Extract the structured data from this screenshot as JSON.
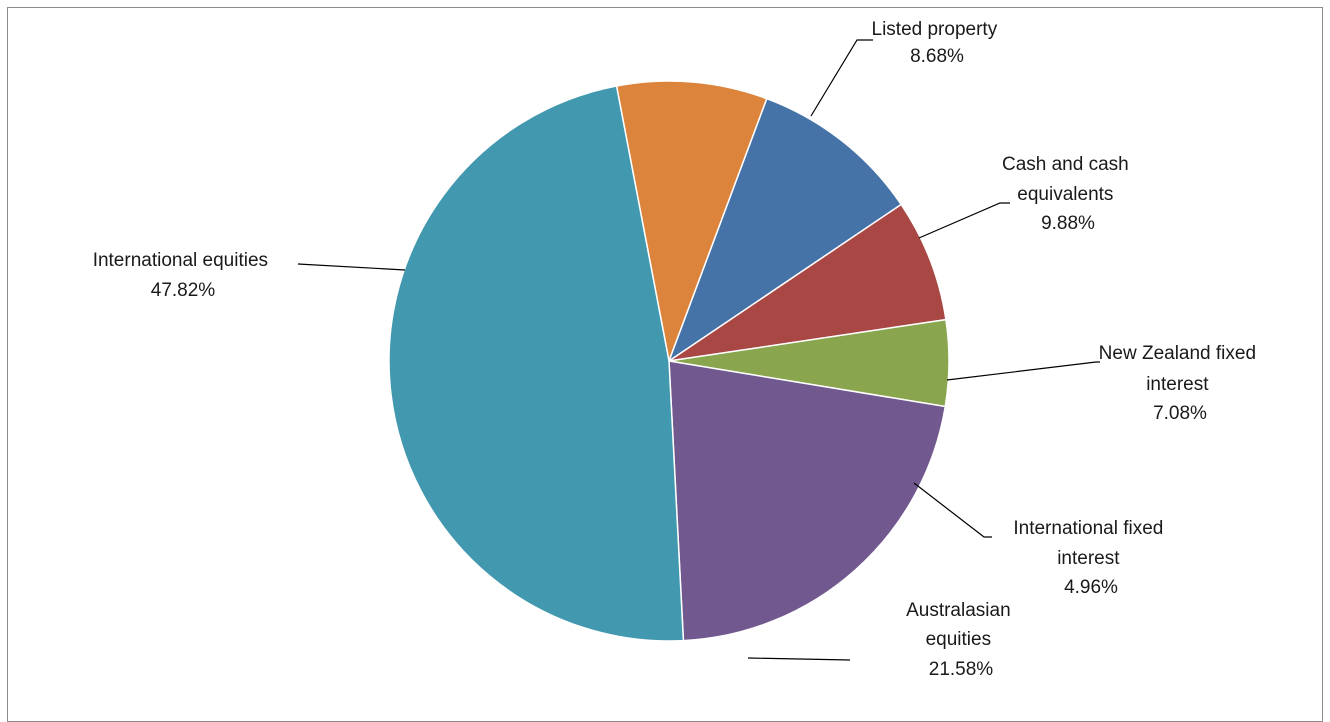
{
  "chart_data": {
    "type": "pie",
    "slices": [
      {
        "lines": [
          "Listed property"
        ],
        "value_label": "8.68%",
        "value": 8.68,
        "color": "#DD843C"
      },
      {
        "lines": [
          "Cash and cash",
          "equivalents"
        ],
        "value_label": "9.88%",
        "value": 9.88,
        "color": "#4572A7"
      },
      {
        "lines": [
          "New Zealand fixed",
          "interest"
        ],
        "value_label": "7.08%",
        "value": 7.08,
        "color": "#A94745"
      },
      {
        "lines": [
          "International fixed",
          "interest"
        ],
        "value_label": "4.96%",
        "value": 4.96,
        "color": "#89A54E"
      },
      {
        "lines": [
          "Australasian",
          "equities"
        ],
        "value_label": "21.58%",
        "value": 21.58,
        "color": "#71588F"
      },
      {
        "lines": [
          "International equities"
        ],
        "value_label": "47.82%",
        "value": 47.82,
        "color": "#4298AF"
      }
    ]
  }
}
